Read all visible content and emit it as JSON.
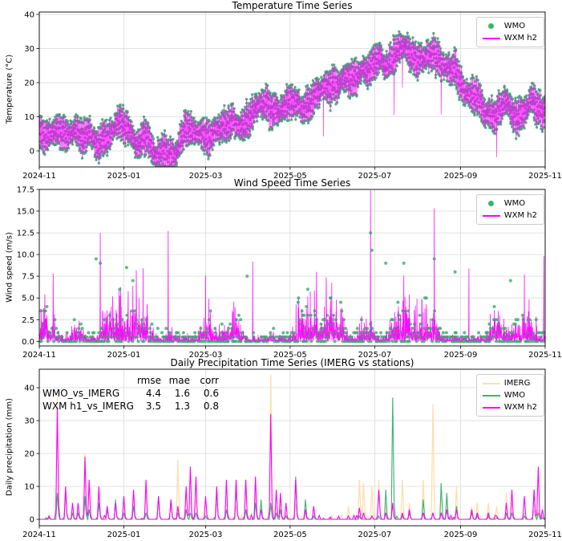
{
  "figure": {
    "background": "#ffffff"
  },
  "colors": {
    "wmo_green": "#3cb371",
    "wxm_magenta": "#ff00ff",
    "imerg_wheat": "#ffdead",
    "grid": "#d9d9d9",
    "spine": "#000000"
  },
  "x_axis": {
    "tick_labels": [
      "2024-11",
      "2025-01",
      "2025-03",
      "2025-05",
      "2025-07",
      "2025-09",
      "2025-11"
    ],
    "tick_days": [
      0,
      61,
      120,
      181,
      242,
      304,
      365
    ],
    "span_days": 365
  },
  "chart_data": [
    {
      "id": "temperature",
      "type": "scatter+line",
      "title": "Temperature Time Series",
      "ylabel": "Temperature (°C)",
      "y_ticks": [
        "0",
        "10",
        "20",
        "30",
        "40"
      ],
      "ylim": [
        -4.7,
        40.7
      ],
      "legend": [
        {
          "label": "WMO",
          "marker": "dot",
          "color": "wmo_green"
        },
        {
          "label": "WXM h2",
          "marker": "line",
          "color": "wxm_magenta"
        }
      ],
      "series": {
        "weekly_mean_c": [
          7,
          5.5,
          7,
          4,
          3.5,
          5,
          2.5,
          3.5,
          5.5,
          7,
          3,
          4.5,
          2,
          1,
          0,
          8,
          5,
          3.5,
          2.5,
          6,
          8.5,
          7,
          10.5,
          12.5,
          10,
          13,
          16,
          15,
          17,
          19,
          18,
          21,
          20,
          22,
          24.5,
          26.5,
          25,
          28,
          27.5,
          25.5,
          27,
          24.5,
          23,
          21.5,
          19,
          16,
          13,
          11,
          15,
          10,
          13,
          15,
          14
        ],
        "diurnal_amplitude_c": 4.5,
        "wxm_glitches": [
          {
            "day": 118,
            "delta": 6
          },
          {
            "day": 205,
            "delta": -11
          },
          {
            "day": 256,
            "delta": -12
          },
          {
            "day": 262,
            "delta": -9
          },
          {
            "day": 290,
            "delta": -10
          },
          {
            "day": 330,
            "delta": -8
          }
        ]
      }
    },
    {
      "id": "wind",
      "type": "scatter+line",
      "title": "Wind Speed Time Series",
      "ylabel": "Wind speed (m/s)",
      "y_ticks": [
        "0.0",
        "2.5",
        "5.0",
        "7.5",
        "10.0",
        "12.5",
        "15.0",
        "17.5"
      ],
      "ylim": [
        -0.5,
        17.5
      ],
      "legend": [
        {
          "label": "WMO",
          "marker": "dot",
          "color": "wmo_green"
        },
        {
          "label": "WXM h2",
          "marker": "line",
          "color": "wxm_magenta"
        }
      ],
      "series": {
        "typical_range_ms": [
          0,
          5
        ],
        "quantization_ms": 0.5,
        "wxm_spike_events": [
          {
            "day": 10,
            "value": 7.8
          },
          {
            "day": 44,
            "value": 12.5
          },
          {
            "day": 70,
            "value": 8.2
          },
          {
            "day": 93,
            "value": 12.7
          },
          {
            "day": 120,
            "value": 7.6
          },
          {
            "day": 154,
            "value": 9.2
          },
          {
            "day": 200,
            "value": 8.0
          },
          {
            "day": 239,
            "value": 17.4
          },
          {
            "day": 285,
            "value": 15.3
          },
          {
            "day": 310,
            "value": 8.4
          },
          {
            "day": 350,
            "value": 7.7
          },
          {
            "day": 364,
            "value": 9.8
          }
        ],
        "wmo_peak_events": [
          {
            "day": 41,
            "value": 9.5
          },
          {
            "day": 44,
            "value": 9.0
          },
          {
            "day": 63,
            "value": 8.5
          },
          {
            "day": 150,
            "value": 7.5
          },
          {
            "day": 239,
            "value": 12.5
          },
          {
            "day": 240,
            "value": 10.5
          },
          {
            "day": 250,
            "value": 9.0
          },
          {
            "day": 285,
            "value": 9.5
          },
          {
            "day": 300,
            "value": 8.0
          },
          {
            "day": 340,
            "value": 7.0
          }
        ]
      }
    },
    {
      "id": "precipitation",
      "type": "line",
      "title": "Daily Precipitation Time Series (IMERG vs stations)",
      "ylabel": "Daily precipitation (mm)",
      "y_ticks": [
        "0",
        "10",
        "20",
        "30",
        "40"
      ],
      "ylim": [
        -2,
        45.6
      ],
      "legend": [
        {
          "label": "IMERG",
          "marker": "line",
          "color": "imerg_wheat"
        },
        {
          "label": "WMO",
          "marker": "line",
          "color": "wmo_green"
        },
        {
          "label": "WXM h2",
          "marker": "line",
          "color": "wxm_magenta"
        }
      ],
      "stats_table": {
        "columns": [
          "rmse",
          "mae",
          "corr"
        ],
        "rows": [
          {
            "name": "WMO_vs_IMERG",
            "values": [
              "4.4",
              "1.6",
              "0.6"
            ]
          },
          {
            "name": "WXM h1_vs_IMERG",
            "values": [
              "3.5",
              "1.3",
              "0.8"
            ]
          }
        ]
      },
      "series": {
        "events_format": [
          "day",
          "imerg_mm",
          "wmo_mm",
          "wxm_mm"
        ],
        "events": [
          [
            7,
            1.5,
            0.5,
            1
          ],
          [
            13,
            37,
            8,
            34
          ],
          [
            19,
            9,
            9,
            10
          ],
          [
            24,
            4,
            2,
            5
          ],
          [
            28,
            3,
            2,
            5
          ],
          [
            33,
            20,
            7,
            19
          ],
          [
            36,
            11,
            3,
            12
          ],
          [
            43,
            9,
            5,
            10
          ],
          [
            49,
            4,
            3,
            4
          ],
          [
            55,
            5,
            6,
            5
          ],
          [
            61,
            6,
            2,
            7
          ],
          [
            68,
            6,
            4,
            9
          ],
          [
            77,
            8,
            2,
            12
          ],
          [
            86,
            7,
            7,
            7
          ],
          [
            95,
            5,
            6,
            6
          ],
          [
            100,
            18,
            2,
            4
          ],
          [
            106,
            9,
            3,
            10
          ],
          [
            109,
            7,
            2,
            16
          ],
          [
            113,
            6,
            2,
            13
          ],
          [
            120,
            3,
            1,
            7
          ],
          [
            128,
            5,
            9,
            10
          ],
          [
            135,
            6,
            3,
            12
          ],
          [
            142,
            4,
            11,
            12
          ],
          [
            149,
            12,
            3,
            12
          ],
          [
            156,
            8,
            5,
            13
          ],
          [
            160,
            4,
            6,
            3
          ],
          [
            167,
            44,
            5,
            32
          ],
          [
            171,
            4,
            2,
            9
          ],
          [
            174,
            6,
            3,
            8
          ],
          [
            178,
            2,
            1,
            5
          ],
          [
            185,
            5,
            13,
            12
          ],
          [
            192,
            2,
            6,
            3
          ],
          [
            198,
            2,
            1,
            4
          ],
          [
            223,
            4,
            0,
            1
          ],
          [
            231,
            12,
            1,
            3.5
          ],
          [
            234,
            11,
            0,
            2
          ],
          [
            240,
            10,
            1,
            1
          ],
          [
            245,
            12,
            1,
            9
          ],
          [
            250,
            5,
            9,
            2
          ],
          [
            255,
            5,
            37,
            5
          ],
          [
            262,
            12,
            1,
            2
          ],
          [
            267,
            5,
            2,
            3
          ],
          [
            277,
            12,
            6,
            2
          ],
          [
            284,
            35,
            2,
            2
          ],
          [
            290,
            9,
            11,
            2
          ],
          [
            294,
            6,
            8,
            3
          ],
          [
            301,
            10,
            4,
            3
          ],
          [
            312,
            4,
            2,
            3
          ],
          [
            316,
            5,
            1,
            2
          ],
          [
            324,
            5,
            1,
            2
          ],
          [
            330,
            4,
            0.5,
            1
          ],
          [
            337,
            8,
            2,
            5
          ],
          [
            341,
            5,
            2,
            9
          ],
          [
            350,
            2,
            1,
            7
          ],
          [
            357,
            3,
            9,
            9
          ],
          [
            360,
            3,
            2,
            16
          ],
          [
            363,
            1,
            0.5,
            3
          ]
        ]
      }
    }
  ]
}
